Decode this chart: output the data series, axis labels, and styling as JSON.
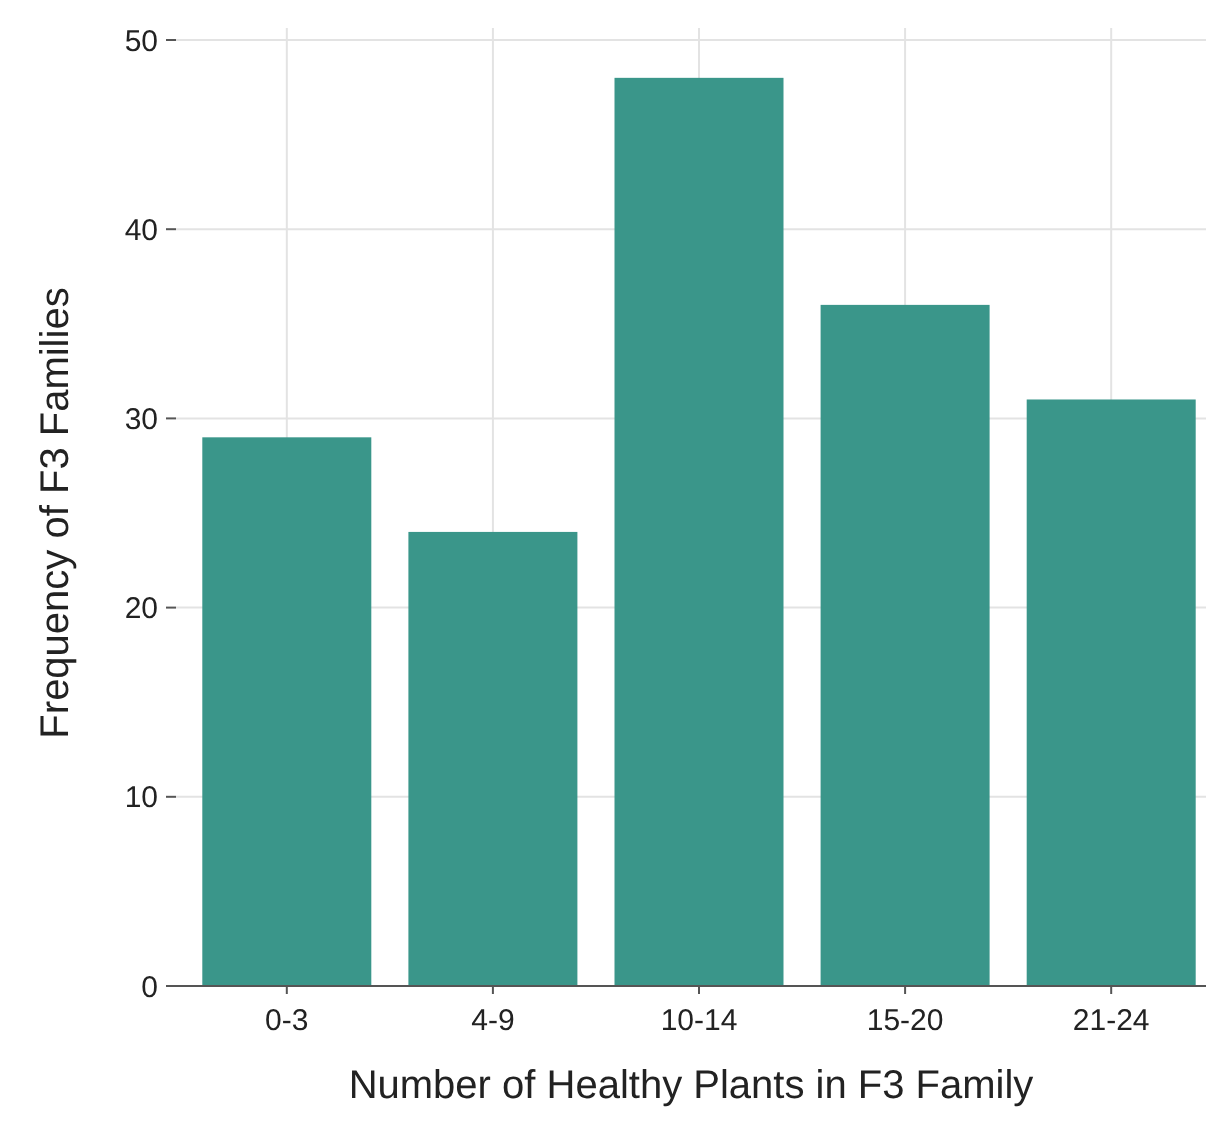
{
  "chart_data": {
    "type": "bar",
    "xlabel": "Number of Healthy Plants in F3 Family",
    "ylabel": "Frequency of F3 Families",
    "categories": [
      "0-3",
      "4-9",
      "10-14",
      "15-20",
      "21-24"
    ],
    "values": [
      29,
      24,
      48,
      36,
      31
    ],
    "color": "#3a968a",
    "ylim": [
      0,
      50
    ],
    "yticks": [
      0,
      10,
      20,
      30,
      40,
      50
    ],
    "grid": true
  }
}
